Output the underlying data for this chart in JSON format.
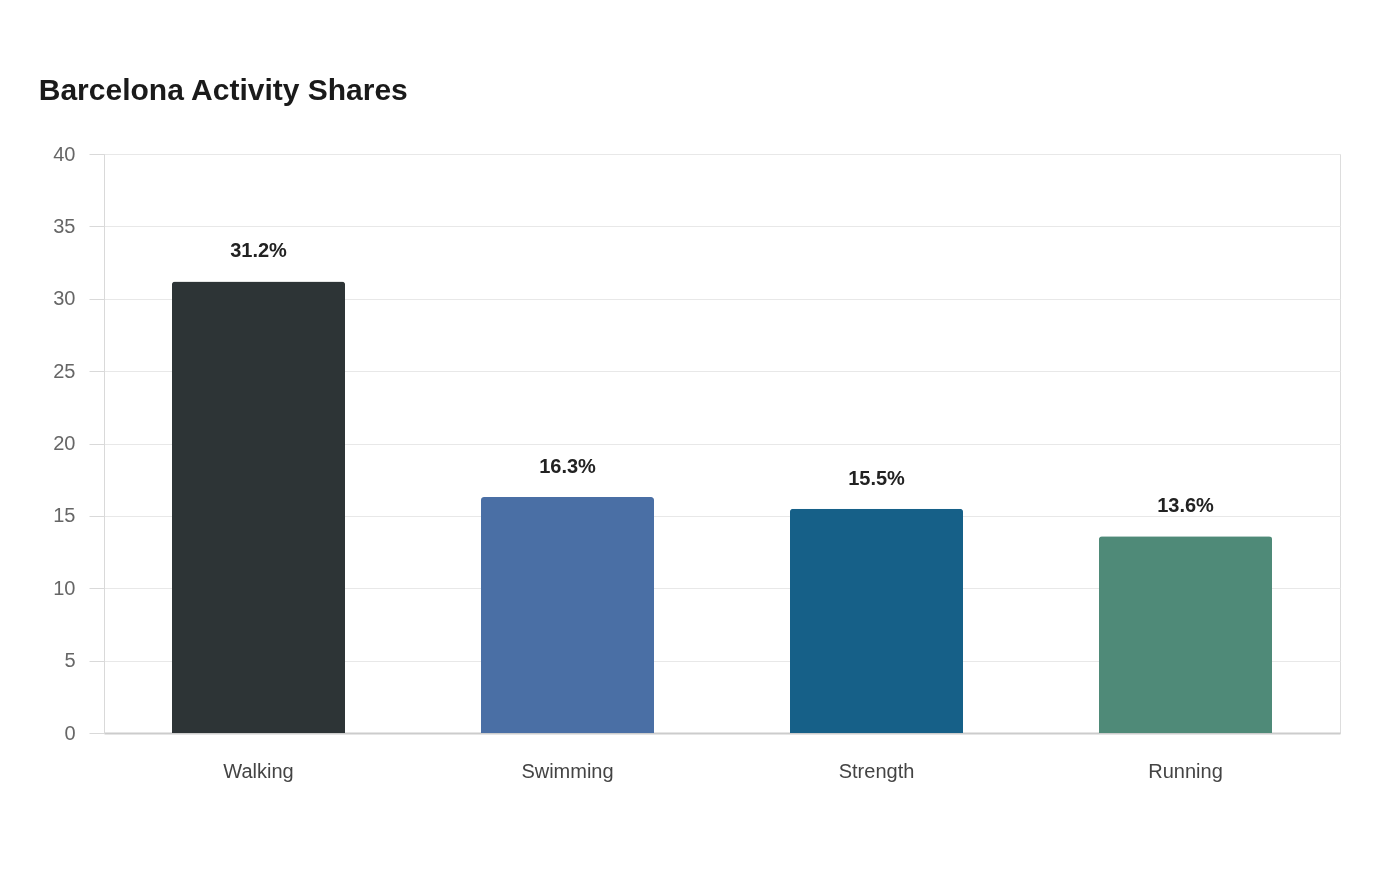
{
  "chart_data": {
    "type": "bar",
    "title": "Barcelona Activity Shares",
    "categories": [
      "Walking",
      "Swimming",
      "Strength",
      "Running"
    ],
    "values": [
      31.2,
      16.3,
      15.5,
      13.6
    ],
    "colors": [
      "#2d3436",
      "#4a6fa5",
      "#166088",
      "#4f8a78"
    ],
    "value_labels": [
      "31.2%",
      "16.3%",
      "15.5%",
      "13.6%"
    ],
    "ylim": [
      0,
      40
    ],
    "yticks": [
      0,
      5,
      10,
      15,
      20,
      25,
      30,
      35,
      40
    ],
    "grid": "y"
  }
}
